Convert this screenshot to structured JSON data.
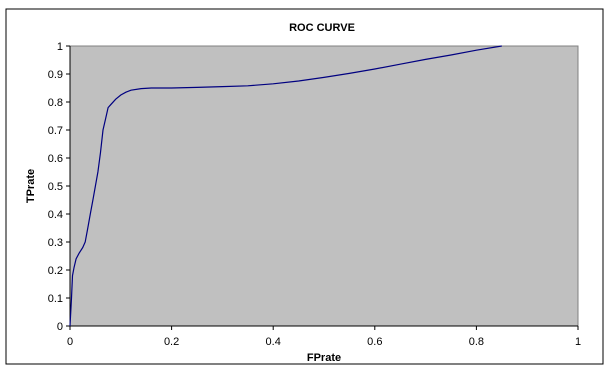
{
  "chart_data": {
    "type": "line",
    "title": "ROC CURVE",
    "xlabel": "FPrate",
    "ylabel": "TPrate",
    "xlim": [
      0,
      1
    ],
    "ylim": [
      0,
      1
    ],
    "x_ticks": [
      "0",
      "0.2",
      "0.4",
      "0.6",
      "0.8",
      "1"
    ],
    "y_ticks": [
      "0",
      "0.1",
      "0.2",
      "0.3",
      "0.4",
      "0.5",
      "0.6",
      "0.7",
      "0.8",
      "0.9",
      "1"
    ],
    "grid": false,
    "legend": "none",
    "plot_background": "#c0c0c0",
    "line_color": "#000080",
    "series": [
      {
        "x": [
          0,
          0.003,
          0.005,
          0.008,
          0.012,
          0.018,
          0.025,
          0.03,
          0.035,
          0.04,
          0.045,
          0.05,
          0.055,
          0.06,
          0.065,
          0.07,
          0.075,
          0.08,
          0.09,
          0.1,
          0.11,
          0.12,
          0.14,
          0.16,
          0.18,
          0.2,
          0.25,
          0.3,
          0.35,
          0.4,
          0.45,
          0.5,
          0.55,
          0.6,
          0.65,
          0.7,
          0.75,
          0.8,
          0.85
        ],
        "y": [
          0,
          0.1,
          0.18,
          0.21,
          0.24,
          0.26,
          0.28,
          0.3,
          0.35,
          0.4,
          0.45,
          0.5,
          0.55,
          0.62,
          0.7,
          0.74,
          0.78,
          0.79,
          0.81,
          0.825,
          0.835,
          0.842,
          0.848,
          0.85,
          0.85,
          0.85,
          0.852,
          0.855,
          0.858,
          0.865,
          0.875,
          0.888,
          0.902,
          0.918,
          0.935,
          0.952,
          0.968,
          0.985,
          1.0
        ]
      }
    ]
  }
}
